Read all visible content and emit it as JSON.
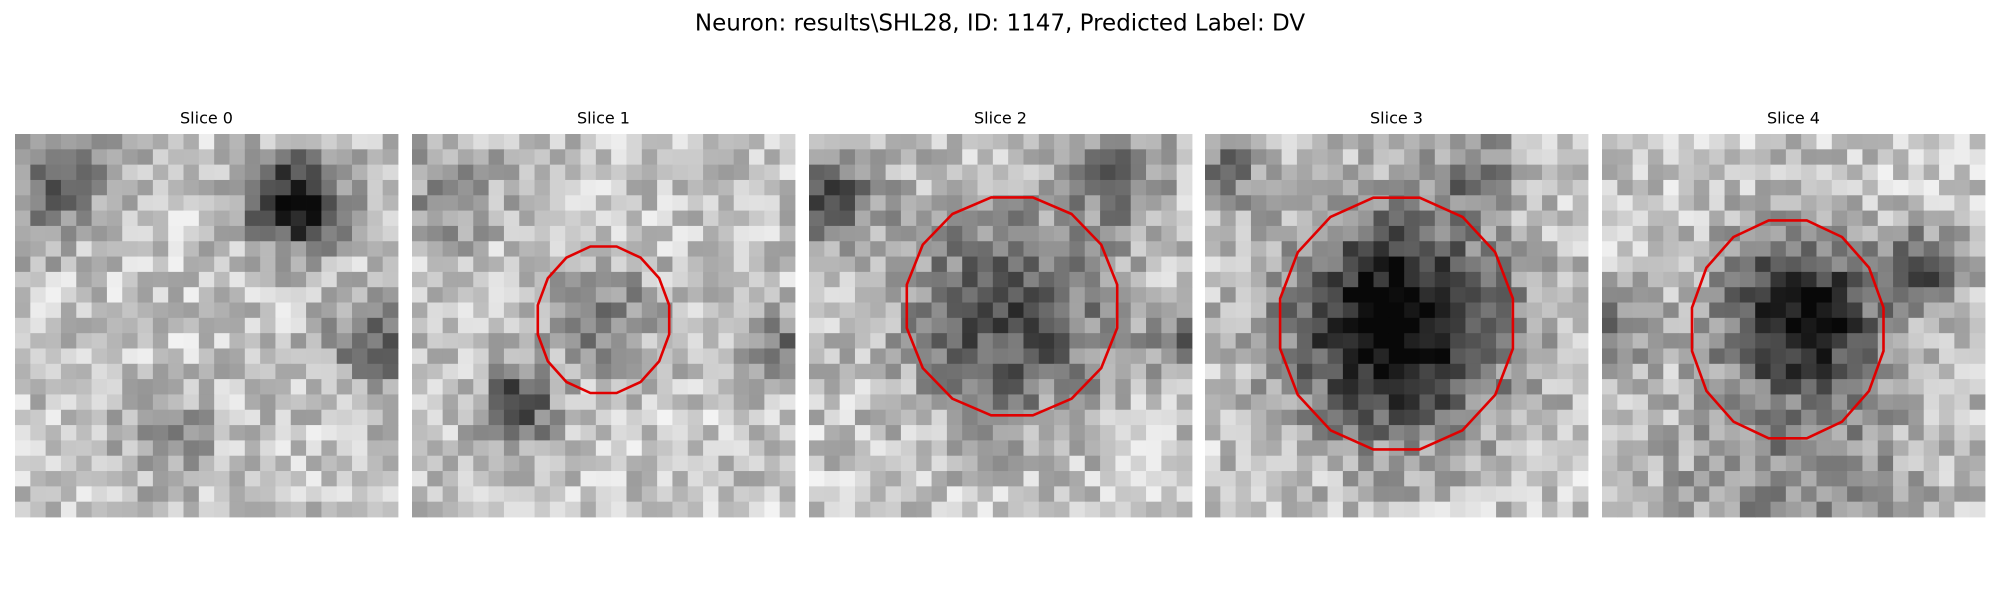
{
  "header": {
    "title": "Neuron: results\\SHL28, ID: 1147, Predicted Label: DV"
  },
  "panels": [
    {
      "title": "Slice 0"
    },
    {
      "title": "Slice 1"
    },
    {
      "title": "Slice 2"
    },
    {
      "title": "Slice 3"
    },
    {
      "title": "Slice 4"
    }
  ]
}
